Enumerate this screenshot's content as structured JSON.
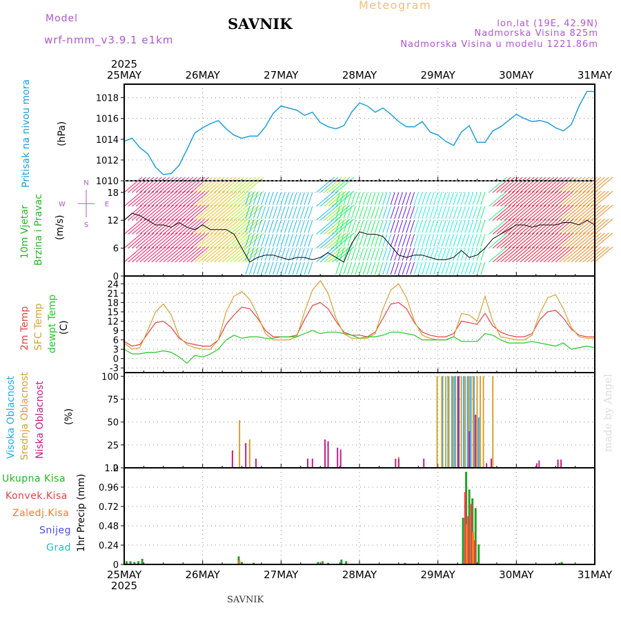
{
  "header": {
    "model_label": "Model",
    "model_version": "wrf-nmm_v3.9.1 e1km",
    "station": "SAVNIK",
    "title": "Meteogram",
    "coords": "lon,lat (19E, 42.9N)",
    "elevation": "Nadmorska Visina 825m",
    "model_elevation": "Nadmorska Visina u modelu 1221.86m"
  },
  "footer_station": "SAVNIK",
  "credit": "made by Angel",
  "colors": {
    "pressure": "#1a9fe0",
    "temp2m": "#e84040",
    "sfc_temp": "#d8a030",
    "dewpoint": "#22c822",
    "cloud_high": "#2aa6e6",
    "cloud_mid": "#d8a030",
    "cloud_low": "#c21c85",
    "precip_total": "#22a022",
    "precip_conv": "#e84040",
    "precip_strat": "#ff7a20",
    "precip_snow": "#4a4af0",
    "precip_graupel": "#1cc4c4"
  },
  "chart_data": [
    {
      "type": "line",
      "id": "pressure",
      "ylabel": "(hPa)",
      "side_label": "Pritisak na nivou mora",
      "x_dates": [
        "25MAY",
        "26MAY",
        "27MAY",
        "28MAY",
        "29MAY",
        "30MAY",
        "31MAY"
      ],
      "year": "2025",
      "ylim": [
        1010,
        1019.3
      ],
      "yticks": [
        1010,
        1012,
        1014,
        1016,
        1018
      ],
      "x_days": [
        0,
        0.1,
        0.2,
        0.3,
        0.4,
        0.5,
        0.6,
        0.7,
        0.8,
        0.9,
        1.0,
        1.1,
        1.2,
        1.3,
        1.4,
        1.5,
        1.6,
        1.7,
        1.8,
        1.9,
        2.0,
        2.1,
        2.2,
        2.3,
        2.4,
        2.5,
        2.6,
        2.7,
        2.8,
        2.9,
        3.0,
        3.1,
        3.2,
        3.3,
        3.4,
        3.5,
        3.6,
        3.7,
        3.8,
        3.9,
        4.0,
        4.1,
        4.2,
        4.3,
        4.4,
        4.5,
        4.6,
        4.7,
        4.8,
        4.9,
        5.0,
        5.1,
        5.2,
        5.3,
        5.4,
        5.5,
        5.6,
        5.7,
        5.8,
        5.9,
        6.0
      ],
      "series": [
        {
          "values": [
            1013.8,
            1014.1,
            1013.2,
            1012.6,
            1011.3,
            1010.6,
            1010.7,
            1011.5,
            1013.0,
            1014.6,
            1015.1,
            1015.5,
            1015.8,
            1015.0,
            1014.4,
            1014.1,
            1014.3,
            1014.3,
            1015.2,
            1016.5,
            1017.2,
            1017.0,
            1016.8,
            1016.3,
            1016.6,
            1015.6,
            1015.2,
            1015.0,
            1015.3,
            1016.6,
            1017.5,
            1017.2,
            1016.6,
            1017.0,
            1016.4,
            1015.7,
            1015.2,
            1015.2,
            1015.7,
            1014.7,
            1014.4,
            1013.8,
            1013.4,
            1014.7,
            1015.3,
            1013.7,
            1013.7,
            1014.8,
            1015.2,
            1015.8,
            1016.4,
            1016.0,
            1015.7,
            1015.8,
            1015.6,
            1015.1,
            1014.8,
            1015.4,
            1017.2,
            1018.6,
            1018.6
          ]
        }
      ]
    },
    {
      "type": "line",
      "id": "wind",
      "ylabel": "(m/s)",
      "side_label_1": "10m Vjetar",
      "side_label_2": "Brzina i Pravac",
      "compass": {
        "north": "N",
        "south": "S",
        "west": "W",
        "east": "E"
      },
      "ylim": [
        0,
        20.5
      ],
      "yticks": [
        0,
        6,
        12,
        18
      ],
      "x_days": [
        0,
        0.1,
        0.2,
        0.3,
        0.4,
        0.5,
        0.6,
        0.7,
        0.8,
        0.9,
        1.0,
        1.1,
        1.2,
        1.3,
        1.4,
        1.5,
        1.6,
        1.7,
        1.8,
        1.9,
        2.0,
        2.1,
        2.2,
        2.3,
        2.4,
        2.5,
        2.6,
        2.7,
        2.8,
        2.9,
        3.0,
        3.1,
        3.2,
        3.3,
        3.4,
        3.5,
        3.6,
        3.7,
        3.8,
        3.9,
        4.0,
        4.1,
        4.2,
        4.3,
        4.4,
        4.5,
        4.6,
        4.7,
        4.8,
        4.9,
        5.0,
        5.1,
        5.2,
        5.3,
        5.4,
        5.5,
        5.6,
        5.7,
        5.8,
        5.9,
        6.0
      ],
      "series": [
        {
          "values": [
            12,
            13.5,
            13,
            12,
            11,
            11,
            10.5,
            11.5,
            10.5,
            10,
            11,
            10,
            10,
            10,
            9,
            6,
            3,
            4,
            4.5,
            4.5,
            4,
            3.5,
            4,
            4,
            3.5,
            4,
            5,
            4,
            3,
            7,
            9.5,
            9,
            9,
            8.5,
            6.5,
            4.5,
            4,
            4.5,
            4.5,
            4,
            3.5,
            3.5,
            4,
            5.5,
            4,
            4.5,
            6,
            8,
            9,
            10,
            11,
            11,
            10.5,
            11,
            11,
            11,
            11.5,
            11.5,
            11,
            12,
            11
          ]
        }
      ]
    },
    {
      "type": "line",
      "id": "temperature",
      "ylabel": "(C)",
      "side_label_1": "2m Temp",
      "side_label_2": "SFC Temp",
      "side_label_3": "dewpt Temp",
      "ylim": [
        -4.5,
        26.5
      ],
      "yticks": [
        -3,
        0,
        3,
        6,
        9,
        12,
        15,
        18,
        21,
        24
      ],
      "x_days": [
        0,
        0.1,
        0.2,
        0.3,
        0.4,
        0.5,
        0.6,
        0.7,
        0.8,
        0.9,
        1.0,
        1.1,
        1.2,
        1.3,
        1.4,
        1.5,
        1.6,
        1.7,
        1.8,
        1.9,
        2.0,
        2.1,
        2.2,
        2.3,
        2.4,
        2.5,
        2.6,
        2.7,
        2.8,
        2.9,
        3.0,
        3.1,
        3.2,
        3.3,
        3.4,
        3.5,
        3.6,
        3.7,
        3.8,
        3.9,
        4.0,
        4.1,
        4.2,
        4.3,
        4.4,
        4.5,
        4.6,
        4.7,
        4.8,
        4.9,
        5.0,
        5.1,
        5.2,
        5.3,
        5.4,
        5.5,
        5.6,
        5.7,
        5.8,
        5.9,
        6.0
      ],
      "series": [
        {
          "name": "2m Temp",
          "values": [
            5.5,
            4,
            4.5,
            8,
            11.5,
            12,
            10,
            6.5,
            5,
            4.5,
            4,
            4,
            6,
            11,
            14,
            16.5,
            16,
            13,
            9,
            7,
            7,
            7,
            7.5,
            12.5,
            17,
            18,
            16,
            12,
            8.5,
            7.5,
            7.5,
            7,
            8.5,
            13,
            17.5,
            18,
            16,
            11.5,
            8.5,
            7.5,
            7,
            7,
            8,
            12,
            11.5,
            11,
            14.5,
            10.5,
            8.5,
            7.5,
            7,
            7,
            8,
            12.5,
            15,
            15.5,
            13,
            9.5,
            7.5,
            7,
            7
          ]
        },
        {
          "name": "SFC Temp",
          "values": [
            5,
            3,
            3.5,
            9,
            15,
            17.5,
            14,
            7,
            4.5,
            3.5,
            3,
            3,
            6,
            15,
            20,
            21.5,
            19,
            14,
            8,
            6,
            6,
            6,
            7,
            15,
            22,
            25,
            21,
            13,
            8,
            6.5,
            6.5,
            6.5,
            8,
            16,
            22,
            24,
            19.5,
            12,
            7.5,
            6.5,
            6,
            6,
            7,
            14.5,
            14,
            12,
            20,
            12,
            7,
            6.5,
            6,
            6,
            7.5,
            14.5,
            19.5,
            20.5,
            16,
            10,
            7,
            6.5,
            6.5
          ]
        },
        {
          "name": "dewpt Temp",
          "values": [
            3,
            1.5,
            1.5,
            2,
            2,
            2.5,
            2,
            0.5,
            -1.5,
            1,
            0.5,
            1.5,
            3,
            6,
            7.5,
            6.5,
            7,
            7,
            6.5,
            6.5,
            7,
            7,
            7,
            8,
            9,
            8,
            8.5,
            8.5,
            8,
            7.5,
            6.5,
            7,
            7,
            7.5,
            8.5,
            8.5,
            8,
            7.5,
            6,
            6,
            6,
            6,
            7,
            5.5,
            5.5,
            5.5,
            8,
            7.5,
            6,
            5,
            5,
            5,
            5.5,
            5,
            4.5,
            4,
            5,
            3,
            3.5,
            4,
            3.5
          ]
        }
      ]
    },
    {
      "type": "bar",
      "id": "clouds",
      "ylabel": "(%)",
      "side_label_1": "Visoka Oblacnost",
      "side_label_2": "Srednja Oblacnost",
      "side_label_3": "Niska Oblacnost",
      "ylim": [
        0,
        104
      ],
      "yticks": [
        0,
        25,
        50,
        75,
        100
      ],
      "series": [
        {
          "name": "Visoka Oblacnost",
          "x_days": [
            4.06,
            4.13,
            4.18,
            4.22,
            4.27,
            4.33,
            4.38,
            4.42,
            4.46,
            4.52
          ],
          "values": [
            100,
            100,
            100,
            100,
            100,
            100,
            100,
            100,
            100,
            55
          ]
        },
        {
          "name": "Srednja Oblacnost",
          "x_days": [
            1.47,
            1.6,
            3.5,
            3.99,
            4.05,
            4.1,
            4.14,
            4.2,
            4.25,
            4.3,
            4.35,
            4.4,
            4.45,
            4.5,
            4.54,
            4.58,
            4.7
          ],
          "values": [
            52,
            31,
            12,
            100,
            100,
            100,
            100,
            100,
            100,
            100,
            100,
            100,
            100,
            100,
            100,
            100,
            100
          ]
        },
        {
          "name": "Niska Oblacnost",
          "x_days": [
            1.38,
            1.55,
            1.68,
            2.34,
            2.4,
            2.56,
            2.6,
            2.72,
            2.76,
            3.46,
            3.5,
            3.82,
            4.26,
            4.4,
            4.48,
            4.62,
            4.68,
            5.26,
            5.29,
            5.53,
            5.57
          ],
          "values": [
            19,
            27,
            10,
            10,
            10,
            31,
            29,
            22,
            20,
            10,
            10,
            10,
            100,
            40,
            58,
            5,
            10,
            5,
            8,
            9,
            9
          ]
        }
      ]
    },
    {
      "type": "bar",
      "id": "precip",
      "ylabel": "1hr Precip (mm)",
      "ylim": [
        0,
        1.2
      ],
      "yticks": [
        0,
        0.24,
        0.48,
        0.72,
        0.96,
        1.2
      ],
      "ytick_labels": [
        "0",
        "0.24",
        "0.48",
        "0.72",
        "0.96",
        "1.2"
      ],
      "legend": [
        "Ukupna Kisa",
        "Konvek.Kisa",
        "Zaledj.Kisa",
        "Snijeg",
        "Grad"
      ],
      "series": [
        {
          "name": "Ukupna Kisa",
          "x_days": [
            0.03,
            0.08,
            0.13,
            0.18,
            0.23,
            1.46,
            1.5,
            1.65,
            2.47,
            2.53,
            2.6,
            2.77,
            2.83,
            3.58,
            4.32,
            4.36,
            4.4,
            4.44,
            4.48,
            4.52,
            5.55,
            5.58
          ],
          "values": [
            0.04,
            0.04,
            0.03,
            0.04,
            0.07,
            0.1,
            0.03,
            0.02,
            0.03,
            0.04,
            0.02,
            0.06,
            0.04,
            0.02,
            0.58,
            1.15,
            0.93,
            0.82,
            0.7,
            0.25,
            0.02,
            0.03
          ]
        },
        {
          "name": "Konvek.Kisa",
          "x_days": [
            4.34,
            4.38,
            4.42,
            4.46
          ],
          "values": [
            0.9,
            0.6,
            0.75,
            0.3
          ]
        },
        {
          "name": "Zaledj.Kisa",
          "x_days": [
            1.45,
            2.5,
            4.35,
            4.43
          ],
          "values": [
            0.05,
            0.02,
            0.5,
            0.4
          ]
        }
      ]
    }
  ]
}
